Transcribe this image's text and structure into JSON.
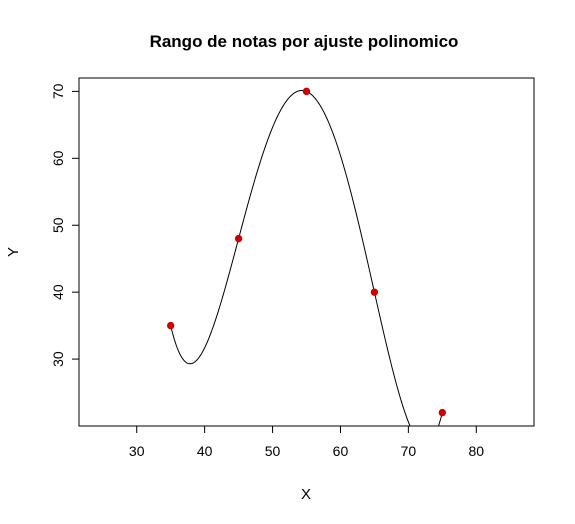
{
  "chart_data": {
    "type": "scatter",
    "title": "Rango de notas por ajuste polinomico",
    "xlabel": "X",
    "ylabel": "Y",
    "xlim": [
      21.5,
      88.5
    ],
    "ylim": [
      20,
      72
    ],
    "x_ticks": [
      30,
      40,
      50,
      60,
      70,
      80
    ],
    "y_ticks": [
      30,
      40,
      50,
      60,
      70
    ],
    "points": [
      {
        "x": 35,
        "y": 35
      },
      {
        "x": 45,
        "y": 48
      },
      {
        "x": 55,
        "y": 70
      },
      {
        "x": 65,
        "y": 40
      },
      {
        "x": 75,
        "y": 22
      }
    ],
    "point_color": "#cc0000",
    "fit": {
      "type": "polynomial",
      "degree": 4,
      "line_color": "#000000",
      "x_range": [
        35,
        75
      ]
    },
    "grid": false,
    "legend": "none"
  }
}
